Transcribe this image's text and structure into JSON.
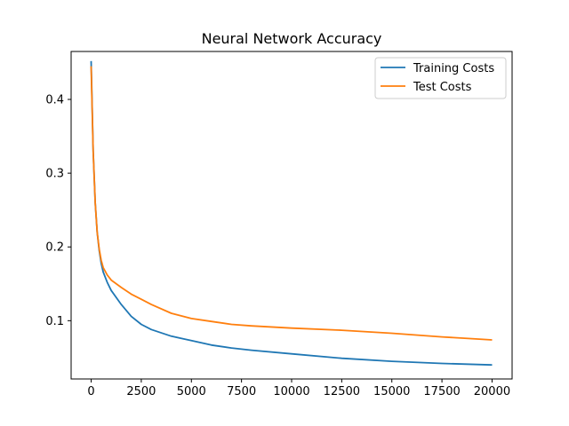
{
  "chart_data": {
    "type": "line",
    "title": "Neural Network Accuracy",
    "xlabel": "",
    "ylabel": "",
    "xlim": [
      -1000,
      21000
    ],
    "ylim": [
      0.021,
      0.465
    ],
    "xticks": [
      0,
      2500,
      5000,
      7500,
      10000,
      12500,
      15000,
      17500,
      20000
    ],
    "yticks": [
      0.1,
      0.2,
      0.3,
      0.4
    ],
    "ytick_labels": [
      "0.1",
      "0.2",
      "0.3",
      "0.4"
    ],
    "grid": false,
    "legend_position": "top-right",
    "series": [
      {
        "name": "Training Costs",
        "color": "#1f77b4",
        "x": [
          0,
          100,
          200,
          300,
          400,
          500,
          600,
          800,
          1000,
          1500,
          2000,
          2500,
          3000,
          4000,
          5000,
          6000,
          7000,
          8000,
          10000,
          12500,
          15000,
          17500,
          20000
        ],
        "y": [
          0.452,
          0.33,
          0.26,
          0.22,
          0.195,
          0.178,
          0.166,
          0.152,
          0.141,
          0.122,
          0.106,
          0.095,
          0.088,
          0.079,
          0.073,
          0.067,
          0.063,
          0.06,
          0.055,
          0.049,
          0.045,
          0.042,
          0.04
        ]
      },
      {
        "name": "Test Costs",
        "color": "#ff7f0e",
        "x": [
          0,
          100,
          200,
          300,
          400,
          500,
          600,
          800,
          1000,
          1500,
          2000,
          2500,
          3000,
          4000,
          5000,
          6000,
          7000,
          8000,
          10000,
          12500,
          15000,
          17500,
          20000
        ],
        "y": [
          0.445,
          0.33,
          0.26,
          0.22,
          0.197,
          0.182,
          0.172,
          0.162,
          0.155,
          0.145,
          0.136,
          0.129,
          0.122,
          0.11,
          0.103,
          0.099,
          0.095,
          0.093,
          0.09,
          0.087,
          0.083,
          0.078,
          0.074
        ]
      }
    ]
  }
}
